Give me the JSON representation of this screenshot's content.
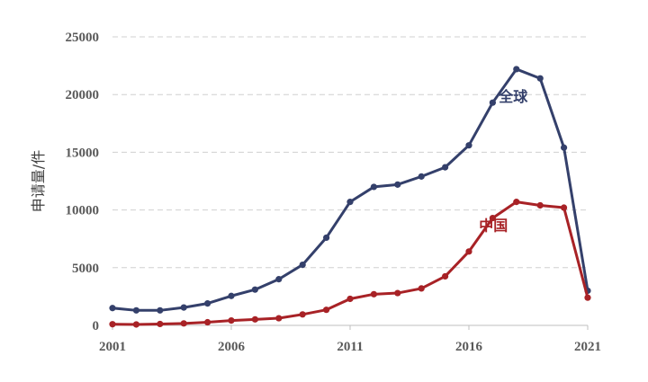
{
  "chart_data": {
    "type": "line",
    "ylabel": "申请量/件",
    "xlabel": "",
    "xlim": [
      2001,
      2021
    ],
    "ylim": [
      0,
      25000
    ],
    "grid": "horizontal dashed",
    "x_ticks": [
      "2001",
      "2006",
      "2011",
      "2016",
      "2021"
    ],
    "y_ticks": [
      "0",
      "5000",
      "10000",
      "15000",
      "20000",
      "25000"
    ],
    "x": [
      2001,
      2002,
      2003,
      2004,
      2005,
      2006,
      2007,
      2008,
      2009,
      2010,
      2011,
      2012,
      2013,
      2014,
      2015,
      2016,
      2017,
      2018,
      2019,
      2020,
      2021
    ],
    "series": [
      {
        "name": "全球",
        "color": "#34406b",
        "values": [
          1500,
          1300,
          1300,
          1550,
          1900,
          2550,
          3100,
          4000,
          5250,
          7600,
          10700,
          12000,
          12200,
          12900,
          13700,
          15600,
          19300,
          22200,
          21400,
          15400,
          3000
        ]
      },
      {
        "name": "中国",
        "color": "#a82226",
        "values": [
          100,
          80,
          120,
          170,
          270,
          420,
          520,
          620,
          950,
          1350,
          2300,
          2700,
          2800,
          3200,
          4250,
          6400,
          9300,
          10700,
          10400,
          10200,
          2400
        ]
      }
    ],
    "annotations": [
      {
        "text": "全球",
        "series": 0
      },
      {
        "text": "中国",
        "series": 1
      }
    ]
  }
}
